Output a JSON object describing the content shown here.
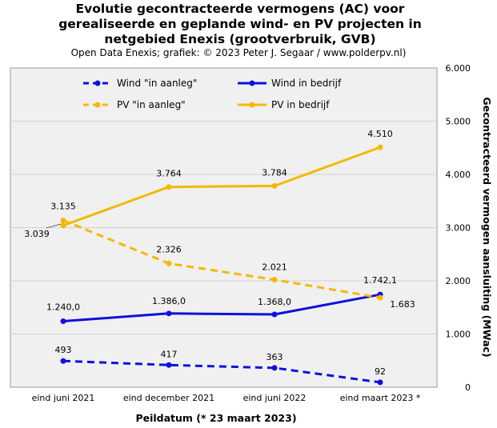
{
  "chart_data": {
    "type": "line",
    "title_lines": [
      "Evolutie  gecontracteerde vermogens (AC) voor",
      "gerealiseerde en geplande wind- en PV projecten in",
      "netgebied Enexis (grootverbruik, GVB)"
    ],
    "subtitle": "Open Data Enexis; grafiek: © 2023 Peter J. Segaar / www.polderpv.nl)",
    "xlabel": "Peildatum (* 23 maart 2023)",
    "ylabel": "Gecontracteerd vermogen aansluiting (MWac)",
    "categories": [
      "eind juni 2021",
      "eind december 2021",
      "eind juni 2022",
      "eind maart 2023 *"
    ],
    "y_ticks": [
      "0",
      "1.000",
      "2.000",
      "3.000",
      "4.000",
      "5.000",
      "6.000"
    ],
    "ylim": [
      0,
      6000
    ],
    "y_axis_side": "right",
    "grid": true,
    "legend_position": "top",
    "series": [
      {
        "name": "Wind \"in aanleg\"",
        "style": "dashed",
        "color": "#1010dd",
        "values": [
          493,
          417,
          363,
          92
        ],
        "labels": [
          "493",
          "417",
          "363",
          "92"
        ]
      },
      {
        "name": "Wind in bedrijf",
        "style": "solid",
        "color": "#1010dd",
        "values": [
          1240.0,
          1386.0,
          1368.0,
          1742.1
        ],
        "labels": [
          "1.240,0",
          "1.386,0",
          "1.368,0",
          "1.742,1"
        ]
      },
      {
        "name": "PV \"in aanleg\"",
        "style": "dashed",
        "color": "#f5b800",
        "values": [
          3135,
          2326,
          2021,
          1683
        ],
        "labels": [
          "3.135",
          "2.326",
          "2.021",
          "1.683"
        ]
      },
      {
        "name": "PV in bedrijf",
        "style": "solid",
        "color": "#f5b800",
        "values": [
          3039,
          3764,
          3784,
          4510
        ],
        "labels": [
          "3.039",
          "3.764",
          "3.784",
          "4.510"
        ]
      }
    ]
  }
}
